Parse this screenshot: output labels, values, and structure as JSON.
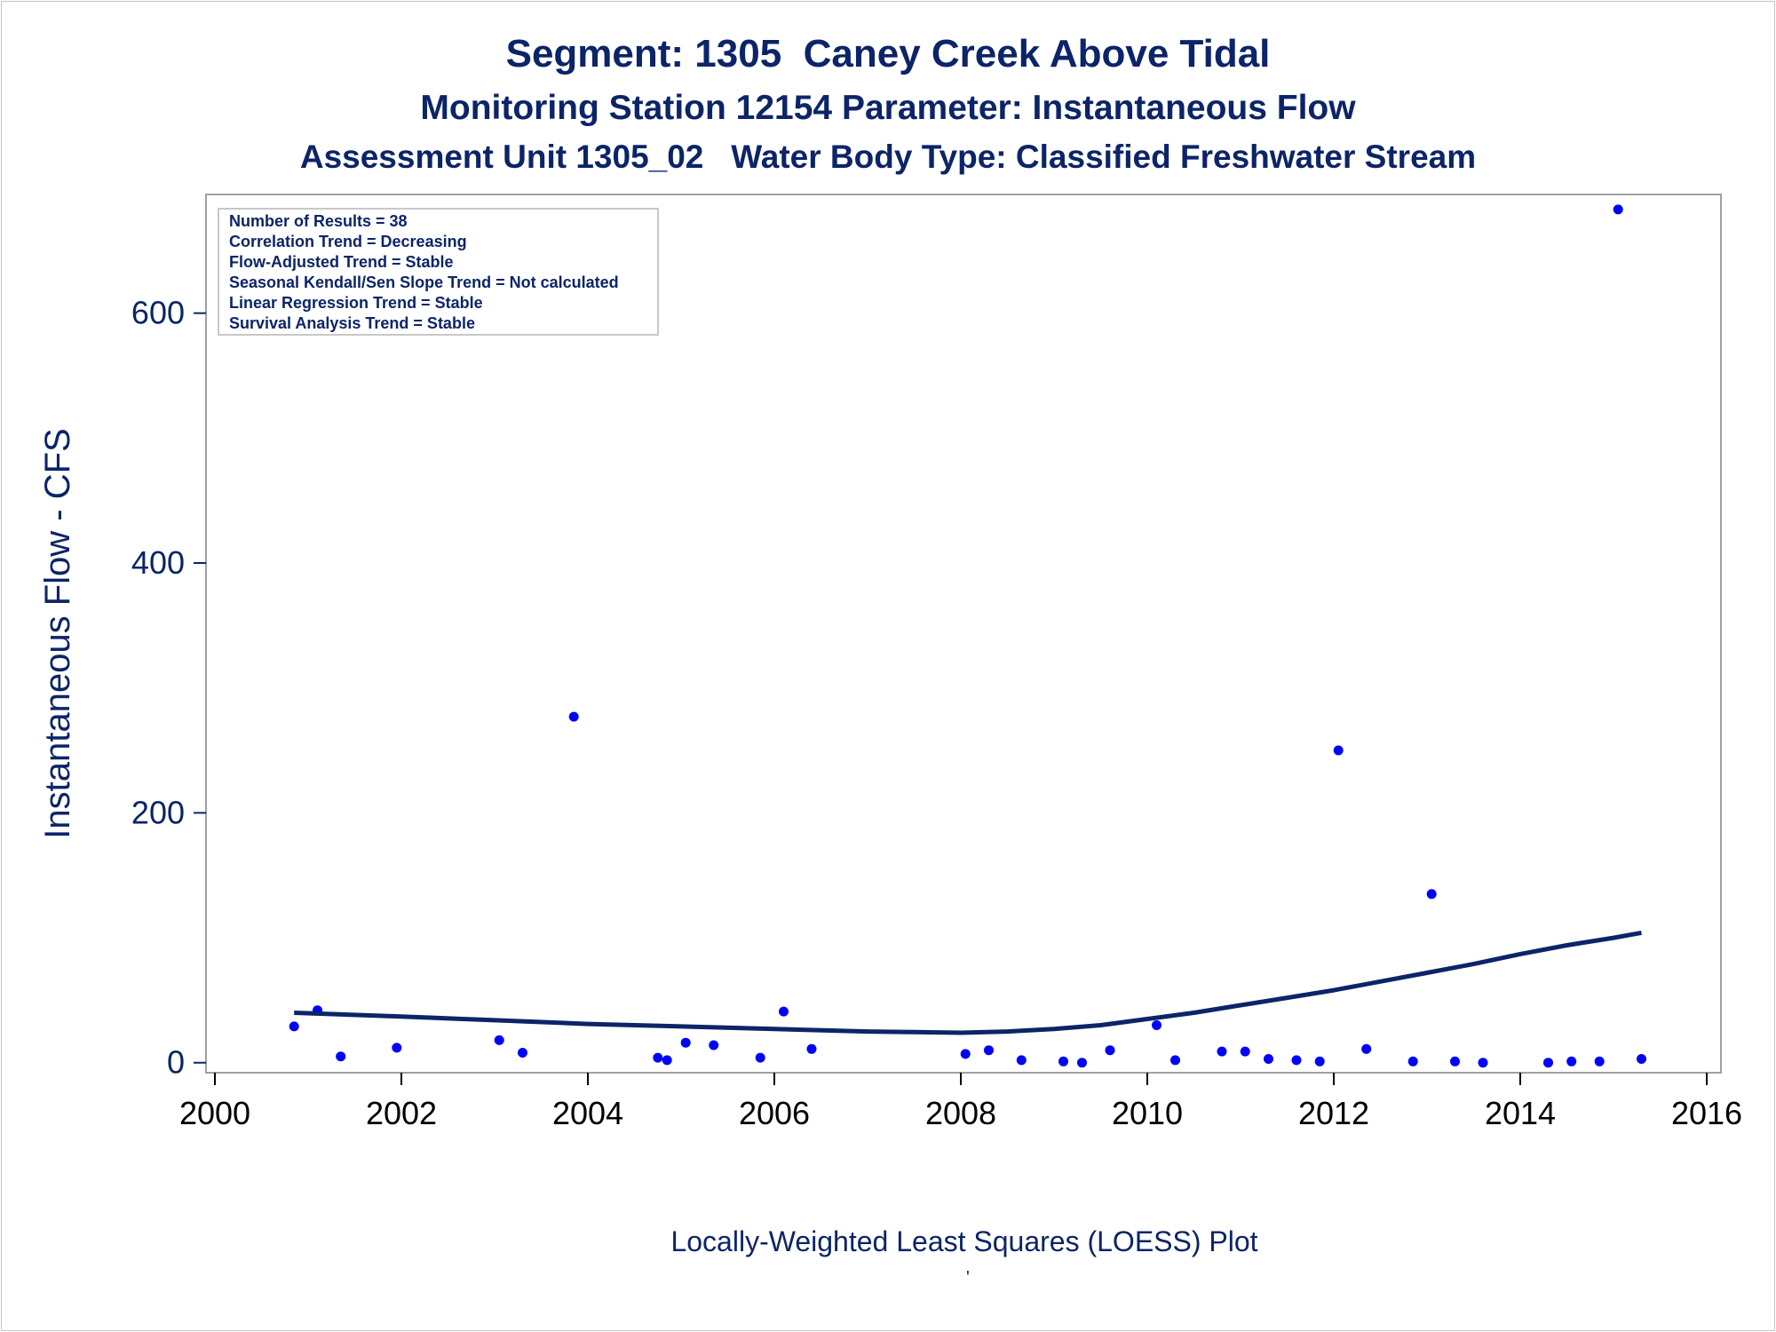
{
  "chart_data": {
    "type": "scatter",
    "title": "Segment: 1305  Caney Creek Above Tidal",
    "subtitle": "Monitoring Station 12154 Parameter: Instantaneous Flow",
    "subtitle2": "Assessment Unit 1305_02   Water Body Type: Classified Freshwater Stream",
    "xlabel": "",
    "ylabel": "Instantaneous Flow - CFS",
    "footnote": "Locally-Weighted Least Squares (LOESS) Plot",
    "footnote_mark": "'",
    "xlim": [
      2000,
      2016
    ],
    "ylim": [
      -8,
      695
    ],
    "xticks": [
      2000,
      2002,
      2004,
      2006,
      2008,
      2010,
      2012,
      2014,
      2016
    ],
    "yticks": [
      0,
      200,
      400,
      600
    ],
    "grid": false,
    "legend_position": "top-left",
    "stats_box": [
      "Number of Results = 38",
      "Correlation Trend = Decreasing",
      "Flow-Adjusted Trend = Stable",
      "Seasonal Kendall/Sen Slope Trend = Not calculated",
      "Linear Regression Trend = Stable",
      "Survival Analysis Trend = Stable"
    ],
    "series": [
      {
        "type": "scatter",
        "color": "#0000ff",
        "points": [
          [
            2000.85,
            29
          ],
          [
            2001.1,
            42
          ],
          [
            2001.35,
            5
          ],
          [
            2001.95,
            12
          ],
          [
            2003.05,
            18
          ],
          [
            2003.3,
            8
          ],
          [
            2003.85,
            277
          ],
          [
            2004.75,
            4
          ],
          [
            2004.85,
            2
          ],
          [
            2005.05,
            16
          ],
          [
            2005.35,
            14
          ],
          [
            2005.85,
            4
          ],
          [
            2006.1,
            41
          ],
          [
            2006.4,
            11
          ],
          [
            2008.05,
            7
          ],
          [
            2008.3,
            10
          ],
          [
            2008.65,
            2
          ],
          [
            2009.1,
            1
          ],
          [
            2009.3,
            0
          ],
          [
            2009.6,
            10
          ],
          [
            2010.1,
            30
          ],
          [
            2010.3,
            2
          ],
          [
            2010.8,
            9
          ],
          [
            2011.05,
            9
          ],
          [
            2011.3,
            3
          ],
          [
            2011.6,
            2
          ],
          [
            2011.85,
            1
          ],
          [
            2012.05,
            250
          ],
          [
            2012.35,
            11
          ],
          [
            2012.85,
            1
          ],
          [
            2013.05,
            135
          ],
          [
            2013.3,
            1
          ],
          [
            2013.6,
            0
          ],
          [
            2014.3,
            0
          ],
          [
            2014.55,
            1
          ],
          [
            2014.85,
            1
          ],
          [
            2015.05,
            683
          ],
          [
            2015.3,
            3
          ]
        ]
      },
      {
        "type": "line",
        "color": "#0c2468",
        "points": [
          [
            2000.85,
            40
          ],
          [
            2002,
            37
          ],
          [
            2003,
            34
          ],
          [
            2004,
            31
          ],
          [
            2005,
            29
          ],
          [
            2006,
            27
          ],
          [
            2007,
            25
          ],
          [
            2007.5,
            24.5
          ],
          [
            2008,
            24
          ],
          [
            2008.5,
            25
          ],
          [
            2009,
            27
          ],
          [
            2009.5,
            30
          ],
          [
            2010,
            35
          ],
          [
            2010.5,
            40
          ],
          [
            2011,
            46
          ],
          [
            2011.5,
            52
          ],
          [
            2012,
            58
          ],
          [
            2012.5,
            65
          ],
          [
            2013,
            72
          ],
          [
            2013.5,
            79
          ],
          [
            2014,
            87
          ],
          [
            2014.5,
            94
          ],
          [
            2015,
            100
          ],
          [
            2015.3,
            104
          ]
        ]
      }
    ]
  }
}
